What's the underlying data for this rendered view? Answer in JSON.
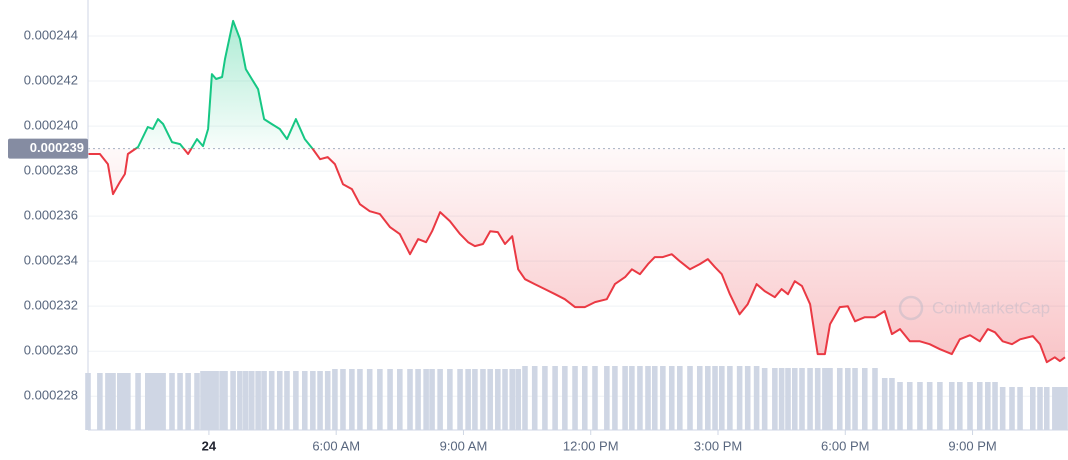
{
  "chart_data": {
    "type": "line",
    "x": [
      -2.85,
      -2.57,
      -2.38,
      -2.26,
      -2.1,
      -1.98,
      -1.91,
      -1.67,
      -1.44,
      -1.32,
      -1.2,
      -1.08,
      -0.87,
      -0.68,
      -0.49,
      -0.28,
      -0.14,
      -0.02,
      0.07,
      0.17,
      0.31,
      0.38,
      0.57,
      0.73,
      0.87,
      1.01,
      1.16,
      1.3,
      1.48,
      1.67,
      1.84,
      2.05,
      2.26,
      2.45,
      2.62,
      2.8,
      2.97,
      3.16,
      3.37,
      3.56,
      3.79,
      4.03,
      4.27,
      4.5,
      4.74,
      4.93,
      5.12,
      5.26,
      5.45,
      5.68,
      5.92,
      6.11,
      6.27,
      6.46,
      6.63,
      6.81,
      6.98,
      7.15,
      7.29,
      7.45,
      7.68,
      7.92,
      8.16,
      8.39,
      8.63,
      8.86,
      9.1,
      9.38,
      9.57,
      9.81,
      9.97,
      10.16,
      10.35,
      10.51,
      10.7,
      10.91,
      11.1,
      11.34,
      11.57,
      11.76,
      11.93,
      12.09,
      12.28,
      12.51,
      12.7,
      12.91,
      13.1,
      13.34,
      13.5,
      13.65,
      13.81,
      13.98,
      14.17,
      14.35,
      14.52,
      14.64,
      14.87,
      15.06,
      15.23,
      15.46,
      15.7,
      15.93,
      16.1,
      16.29,
      16.52,
      16.76,
      16.99,
      17.23,
      17.51,
      17.7,
      17.94,
      18.17,
      18.36,
      18.53,
      18.71,
      18.93,
      19.12,
      19.42,
      19.59,
      19.75,
      19.94,
      20.06,
      20.18
    ],
    "series": [
      {
        "name": "Price",
        "color_up": "#16c784",
        "color_down": "#ea3943",
        "values": [
          0.00023876,
          0.00023876,
          0.00023831,
          0.00023698,
          0.00023751,
          0.00023787,
          0.00023876,
          0.00023907,
          0.00023996,
          0.00023987,
          0.00024031,
          0.00024009,
          0.00023929,
          0.0002392,
          0.00023876,
          0.00023942,
          0.00023911,
          0.00023987,
          0.00024231,
          0.00024209,
          0.00024218,
          0.00024298,
          0.00024467,
          0.00024387,
          0.00024253,
          0.00024209,
          0.00024164,
          0.00024031,
          0.00024009,
          0.00023987,
          0.00023942,
          0.00024031,
          0.00023942,
          0.00023898,
          0.00023853,
          0.00023862,
          0.00023831,
          0.00023742,
          0.0002372,
          0.00023653,
          0.00023622,
          0.00023609,
          0.00023551,
          0.0002352,
          0.00023431,
          0.00023498,
          0.00023484,
          0.00023533,
          0.00023618,
          0.00023578,
          0.0002352,
          0.00023484,
          0.00023467,
          0.00023476,
          0.00023533,
          0.00023529,
          0.00023476,
          0.00023511,
          0.00023364,
          0.0002332,
          0.00023298,
          0.00023276,
          0.00023253,
          0.00023231,
          0.00023196,
          0.00023196,
          0.00023218,
          0.00023231,
          0.00023298,
          0.00023329,
          0.00023364,
          0.00023342,
          0.00023387,
          0.00023418,
          0.00023418,
          0.00023431,
          0.000234,
          0.00023364,
          0.00023387,
          0.00023409,
          0.00023373,
          0.00023342,
          0.00023253,
          0.00023164,
          0.00023209,
          0.00023298,
          0.00023267,
          0.0002324,
          0.00023276,
          0.00023253,
          0.00023311,
          0.00023289,
          0.00023209,
          0.00022987,
          0.00022987,
          0.0002312,
          0.00023196,
          0.000232,
          0.00023133,
          0.00023151,
          0.00023151,
          0.00023178,
          0.00023076,
          0.00023098,
          0.00023044,
          0.00023044,
          0.00023031,
          0.00023009,
          0.00022987,
          0.00023053,
          0.00023071,
          0.00023044,
          0.00023098,
          0.00023084,
          0.00023044,
          0.00023031,
          0.00023053,
          0.00023067,
          0.00023031,
          0.00022951,
          0.00022973,
          0.00022956,
          0.00022973
        ]
      }
    ],
    "volume": {
      "color": "#cfd6e4",
      "ylim": [
        0,
        100
      ],
      "values": [
        57,
        57,
        57,
        57,
        57,
        57,
        57,
        57,
        57,
        57,
        57,
        57,
        57,
        57,
        57,
        57,
        59,
        59,
        59,
        59,
        59,
        59,
        59,
        59,
        59,
        59,
        59,
        59,
        59,
        59,
        59,
        59,
        59,
        59,
        59,
        59,
        61,
        61,
        61,
        61,
        61,
        61,
        61,
        61,
        61,
        61,
        61,
        61,
        61,
        61,
        61,
        61,
        61,
        61,
        61,
        61,
        61,
        61,
        61,
        64,
        64,
        64,
        64,
        64,
        64,
        64,
        64,
        64,
        64,
        64,
        64,
        64,
        64,
        64,
        64,
        64,
        64,
        64,
        64,
        64,
        64,
        64,
        64,
        64,
        64,
        64,
        62,
        62,
        62,
        62,
        62,
        62,
        62,
        62,
        62,
        62,
        62,
        62,
        62,
        62,
        62,
        52,
        52,
        48,
        48,
        48,
        48,
        48,
        48,
        48,
        48,
        48,
        48,
        48,
        43,
        43,
        43,
        43,
        43,
        43,
        43,
        43,
        43
      ]
    },
    "reference_line": 0.000239,
    "xlim": [
      -2.85,
      20.25
    ],
    "ylim": [
      0.0002265,
      0.0002456
    ],
    "xticks": [
      {
        "value": 0,
        "label": "24"
      },
      {
        "value": 3,
        "label": "6:00 AM"
      },
      {
        "value": 6,
        "label": "9:00 AM"
      },
      {
        "value": 9,
        "label": "12:00 PM"
      },
      {
        "value": 12,
        "label": "3:00 PM"
      },
      {
        "value": 15,
        "label": "6:00 PM"
      },
      {
        "value": 18,
        "label": "9:00 PM"
      }
    ],
    "yticks": [
      0.000228,
      {
        "value": 0.00023,
        "label": "0.000230"
      },
      0.000232,
      0.000234,
      0.000236,
      0.000238,
      {
        "value": 0.00024,
        "label": "0.000240"
      },
      0.000242,
      0.000244
    ],
    "grid": true,
    "watermark": "CoinMarketCap"
  }
}
